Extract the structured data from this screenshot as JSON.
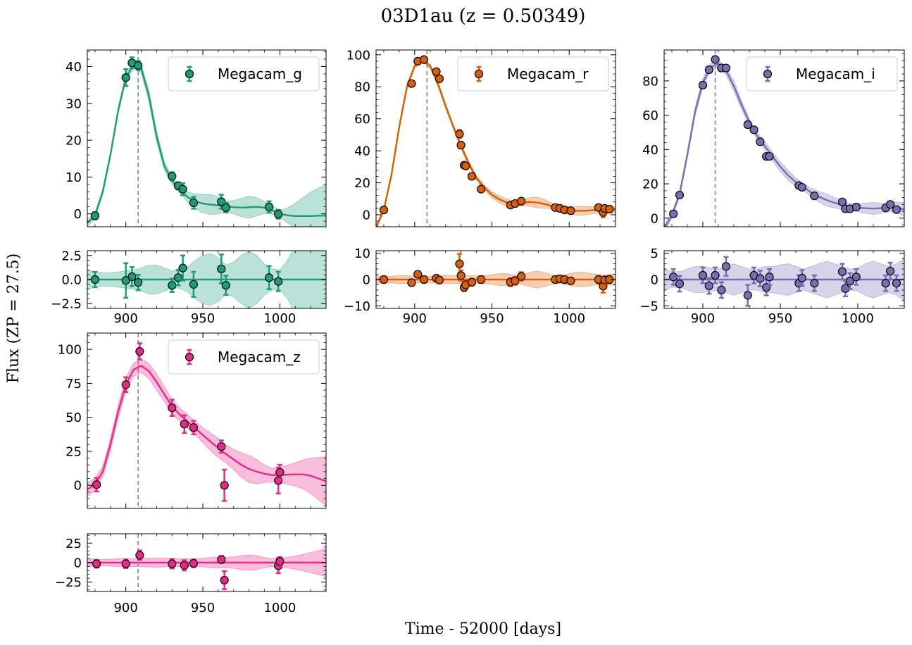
{
  "figure": {
    "title": "03D1au (z = 0.50349)",
    "xlabel": "Time - 52000 [days]",
    "ylabel": "Flux (ZP = 27.5)",
    "peak_time": 908
  },
  "chart_data": [
    {
      "type": "scatter",
      "band": "Megacam_g",
      "legend": "Megacam_g",
      "legend_position": "top-right",
      "color": "#1b9e77",
      "xlim": [
        875,
        1030
      ],
      "ylim": [
        -3.5,
        44.5
      ],
      "yticks": [
        0,
        10,
        20,
        30,
        40
      ],
      "resid_ylim": [
        -3,
        3
      ],
      "resid_yticks": [
        -2.5,
        0.0,
        2.5
      ],
      "xticks": [
        900,
        950,
        1000
      ],
      "points": {
        "x": [
          880,
          900,
          904,
          908,
          930,
          934,
          937,
          944,
          962,
          965,
          993,
          999
        ],
        "y": [
          -0.5,
          37,
          41,
          40.3,
          10.2,
          7.6,
          6.7,
          3.0,
          3.3,
          1.7,
          1.9,
          -0.1
        ],
        "err": [
          1.0,
          2.3,
          1.5,
          1.2,
          1.1,
          1.0,
          1.6,
          1.6,
          1.9,
          1.3,
          1.5,
          1.2
        ]
      },
      "model": {
        "x": [
          875,
          880,
          885,
          890,
          895,
          900,
          905,
          910,
          915,
          920,
          925,
          930,
          935,
          940,
          945,
          950,
          955,
          960,
          965,
          970,
          975,
          980,
          985,
          990,
          995,
          1000,
          1005,
          1010,
          1015,
          1020,
          1025,
          1030
        ],
        "y": [
          -2.5,
          -0.5,
          6,
          16,
          28,
          37,
          40.5,
          39.5,
          32,
          21,
          13,
          9,
          6.5,
          4.6,
          3.4,
          2.8,
          2.5,
          2.3,
          2.0,
          1.8,
          1.7,
          1.8,
          1.9,
          1.7,
          1.0,
          0.0,
          -0.4,
          -0.6,
          -0.6,
          -0.6,
          -0.5,
          -0.5
        ],
        "unc": [
          1.0,
          0.8,
          0.7,
          0.7,
          0.8,
          0.9,
          1.0,
          1.2,
          1.5,
          1.5,
          1.2,
          0.9,
          0.9,
          1.3,
          2.0,
          2.5,
          2.7,
          2.3,
          1.5,
          1.8,
          2.5,
          3.0,
          2.5,
          1.6,
          1.1,
          1.0,
          2.0,
          3.5,
          5.0,
          6.5,
          7.5,
          8.5
        ]
      },
      "residuals": {
        "y": [
          0.0,
          -0.1,
          0.3,
          -0.3,
          -0.6,
          0.2,
          1.2,
          -0.5,
          1.1,
          -0.6,
          0.2,
          -0.2
        ],
        "err": [
          0.8,
          1.8,
          1.0,
          0.8,
          0.7,
          0.8,
          1.3,
          1.3,
          1.5,
          1.0,
          1.2,
          1.0
        ]
      }
    },
    {
      "type": "scatter",
      "band": "Megacam_r",
      "legend": "Megacam_r",
      "legend_position": "top-right",
      "color": "#d95f02",
      "xlim": [
        875,
        1030
      ],
      "ylim": [
        -7.5,
        103
      ],
      "yticks": [
        0,
        20,
        40,
        60,
        80,
        100
      ],
      "resid_ylim": [
        -11,
        11
      ],
      "resid_yticks": [
        -10,
        0,
        10
      ],
      "xticks": [
        900,
        950,
        1000
      ],
      "points": {
        "x": [
          880,
          898,
          902,
          906,
          914,
          916,
          929,
          930,
          932,
          933,
          937,
          943,
          962,
          965,
          969,
          991,
          994,
          997,
          1001,
          1019,
          1022,
          1023,
          1026
        ],
        "y": [
          3.0,
          82,
          96,
          97,
          89.5,
          85,
          50.5,
          43.5,
          31,
          30.5,
          24,
          16,
          6.0,
          7.0,
          8.5,
          4.5,
          4.0,
          3.0,
          2.5,
          4.5,
          1.5,
          4.0,
          3.5
        ],
        "err": [
          1.2,
          1.2,
          1.2,
          1.2,
          1.3,
          1.3,
          2.5,
          2.0,
          1.5,
          1.5,
          1.4,
          1.4,
          1.5,
          1.5,
          1.6,
          1.2,
          1.2,
          1.2,
          1.2,
          1.5,
          3.0,
          1.5,
          1.5
        ]
      },
      "model": {
        "x": [
          875,
          880,
          885,
          890,
          895,
          900,
          905,
          910,
          915,
          920,
          925,
          930,
          935,
          940,
          945,
          950,
          955,
          960,
          965,
          970,
          975,
          980,
          985,
          990,
          995,
          1000,
          1005,
          1010,
          1015,
          1020,
          1025,
          1030
        ],
        "y": [
          -8,
          3,
          25,
          55,
          80,
          93,
          96.5,
          93,
          82,
          68,
          55,
          43,
          32,
          23,
          17,
          12.5,
          9.5,
          7.5,
          6.8,
          7.5,
          8.0,
          7.5,
          6.5,
          5.0,
          3.8,
          3.0,
          2.5,
          2.5,
          2.8,
          3.0,
          3.0,
          3.0
        ],
        "unc": [
          1.5,
          1.2,
          1.3,
          1.5,
          1.5,
          1.3,
          1.2,
          1.3,
          1.5,
          1.6,
          1.5,
          1.5,
          1.5,
          1.5,
          1.5,
          1.8,
          2.3,
          2.2,
          1.6,
          1.9,
          2.8,
          3.3,
          2.5,
          1.6,
          1.6,
          2.2,
          2.8,
          2.7,
          2.2,
          1.8,
          1.8,
          2.2
        ]
      },
      "residuals": {
        "y": [
          0.0,
          -1.2,
          2.0,
          0.0,
          0.5,
          -0.2,
          6.0,
          1.5,
          -3.0,
          -2.0,
          -1.0,
          0.0,
          -1.0,
          -0.5,
          1.2,
          0.0,
          0.3,
          0.0,
          -0.5,
          0.0,
          -2.5,
          -0.2,
          0.0
        ],
        "err": [
          1.2,
          1.2,
          1.2,
          1.2,
          1.2,
          1.2,
          3.8,
          2.0,
          1.4,
          1.4,
          1.3,
          1.3,
          1.5,
          1.5,
          1.6,
          1.2,
          1.2,
          1.2,
          1.2,
          1.4,
          2.5,
          1.4,
          1.4
        ]
      }
    },
    {
      "type": "scatter",
      "band": "Megacam_i",
      "legend": "Megacam_i",
      "legend_position": "top-right",
      "color": "#7570b3",
      "xlim": [
        875,
        1030
      ],
      "ylim": [
        -5,
        98
      ],
      "yticks": [
        0,
        20,
        40,
        60,
        80
      ],
      "resid_ylim": [
        -5.5,
        5.5
      ],
      "resid_yticks": [
        -5,
        0,
        5
      ],
      "xticks": [
        900,
        950,
        1000
      ],
      "points": {
        "x": [
          881,
          885,
          900,
          904,
          908,
          912,
          915,
          929,
          933,
          937,
          941,
          943,
          962,
          964,
          972,
          990,
          992,
          995,
          999,
          1018,
          1021,
          1025
        ],
        "y": [
          2.5,
          13.5,
          77.5,
          86.5,
          92.5,
          87.5,
          87.5,
          54.5,
          51.5,
          44.5,
          36,
          36,
          19,
          18,
          13,
          9.5,
          5.5,
          5.5,
          6.5,
          6.0,
          8.0,
          5.0
        ],
        "err": [
          1.0,
          1.0,
          1.0,
          1.0,
          1.0,
          1.0,
          1.0,
          1.0,
          1.0,
          1.0,
          1.0,
          1.0,
          1.0,
          1.0,
          1.0,
          1.0,
          1.0,
          1.0,
          1.0,
          1.0,
          1.0,
          1.0
        ]
      },
      "model": {
        "x": [
          875,
          880,
          885,
          890,
          895,
          900,
          905,
          910,
          915,
          920,
          925,
          930,
          935,
          940,
          945,
          950,
          955,
          960,
          965,
          970,
          975,
          980,
          985,
          990,
          995,
          1000,
          1005,
          1010,
          1015,
          1020,
          1025,
          1030
        ],
        "y": [
          -6,
          1.5,
          14,
          37,
          62,
          79,
          88,
          90,
          86,
          77,
          66,
          56,
          48,
          42,
          36,
          30,
          25,
          21,
          18,
          15,
          12.5,
          10.5,
          9,
          7.5,
          6.5,
          6.0,
          5.8,
          5.6,
          5.8,
          6.2,
          6.5,
          5.0
        ],
        "unc": [
          2.0,
          1.5,
          1.5,
          2.0,
          2.5,
          2.5,
          2.2,
          2.0,
          2.5,
          3.0,
          2.5,
          2.0,
          2.0,
          2.5,
          2.5,
          2.8,
          3.0,
          2.5,
          2.0,
          2.5,
          3.0,
          3.5,
          3.0,
          2.5,
          2.0,
          2.2,
          3.0,
          3.5,
          3.0,
          2.5,
          3.0,
          4.0
        ]
      },
      "residuals": {
        "y": [
          0.5,
          -0.8,
          0.8,
          -1.2,
          0.8,
          -2.0,
          2.5,
          -3.0,
          0.8,
          0.2,
          -1.5,
          0.5,
          -0.7,
          0.3,
          -0.7,
          1.5,
          -1.7,
          -0.3,
          0.5,
          -0.7,
          1.6,
          -0.7
        ],
        "err": [
          1.5,
          1.5,
          1.5,
          1.5,
          1.5,
          1.5,
          1.8,
          2.0,
          1.5,
          1.5,
          1.5,
          1.5,
          1.5,
          1.5,
          1.5,
          1.5,
          1.5,
          1.5,
          1.5,
          1.5,
          1.6,
          1.5
        ]
      }
    },
    {
      "type": "scatter",
      "band": "Megacam_z",
      "legend": "Megacam_z",
      "legend_position": "top-right",
      "color": "#e7298a",
      "xlim": [
        875,
        1030
      ],
      "ylim": [
        -17,
        112
      ],
      "yticks": [
        0,
        25,
        50,
        75,
        100
      ],
      "resid_ylim": [
        -37,
        37
      ],
      "resid_yticks": [
        -25,
        0,
        25
      ],
      "xticks": [
        900,
        950,
        1000
      ],
      "points": {
        "x": [
          881,
          900,
          909,
          930,
          938,
          944,
          962,
          964,
          999,
          1000
        ],
        "y": [
          0.5,
          74,
          98.5,
          57,
          45,
          42.5,
          28.5,
          0.0,
          3.5,
          9.5
        ],
        "err": [
          5.0,
          5.5,
          6.0,
          6.0,
          6.5,
          5.0,
          4.5,
          11.5,
          9.5,
          5.5
        ]
      },
      "model": {
        "x": [
          875,
          880,
          885,
          890,
          895,
          900,
          905,
          910,
          915,
          920,
          925,
          930,
          935,
          940,
          945,
          950,
          955,
          960,
          965,
          970,
          975,
          980,
          985,
          990,
          995,
          1000,
          1005,
          1010,
          1015,
          1020,
          1025,
          1030
        ],
        "y": [
          -3,
          0.5,
          10,
          30,
          54,
          74,
          85,
          88,
          84,
          76,
          67,
          58,
          52,
          47,
          42,
          37,
          32,
          27.5,
          23,
          19,
          15,
          12,
          10,
          8.5,
          7.5,
          7.5,
          7.8,
          8.0,
          8.0,
          7.0,
          5.0,
          3.0
        ],
        "unc": [
          5.0,
          4.5,
          4.0,
          4.5,
          5.0,
          5.0,
          5.0,
          5.0,
          5.5,
          6.0,
          5.5,
          5.0,
          5.0,
          5.0,
          5.0,
          5.5,
          6.5,
          7.0,
          6.5,
          7.5,
          9.0,
          10.0,
          9.0,
          6.5,
          5.0,
          5.5,
          7.0,
          8.5,
          10.5,
          13.0,
          15.5,
          18.0
        ]
      },
      "residuals": {
        "y": [
          -1.5,
          -1.5,
          9.5,
          -1.5,
          -3.5,
          -1.0,
          4.0,
          -22.5,
          -4.0,
          1.5
        ],
        "err": [
          5.0,
          5.5,
          6.0,
          6.0,
          6.5,
          5.0,
          4.5,
          11.5,
          9.5,
          5.5
        ]
      }
    }
  ]
}
